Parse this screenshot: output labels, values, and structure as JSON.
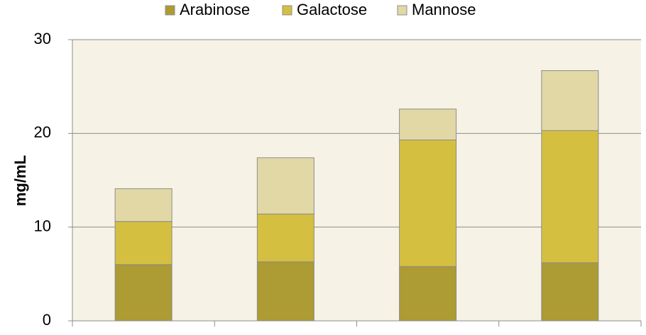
{
  "chart_data": {
    "type": "stacked_bar",
    "y_label": "mg/mL",
    "categories": [
      null,
      null,
      null,
      null
    ],
    "series": [
      {
        "name": "Arabinose",
        "color": "#ad9b33",
        "values": [
          6.0,
          6.3,
          5.8,
          6.2
        ]
      },
      {
        "name": "Galactose",
        "color": "#d4bf40",
        "values": [
          4.6,
          5.1,
          13.5,
          14.1
        ]
      },
      {
        "name": "Mannose",
        "color": "#e2d8a6",
        "values": [
          3.5,
          6.0,
          3.3,
          6.4
        ]
      }
    ],
    "ylim": [
      0,
      30
    ],
    "yticks": [
      0,
      10,
      20,
      30
    ],
    "grid": true,
    "legend": "top"
  }
}
